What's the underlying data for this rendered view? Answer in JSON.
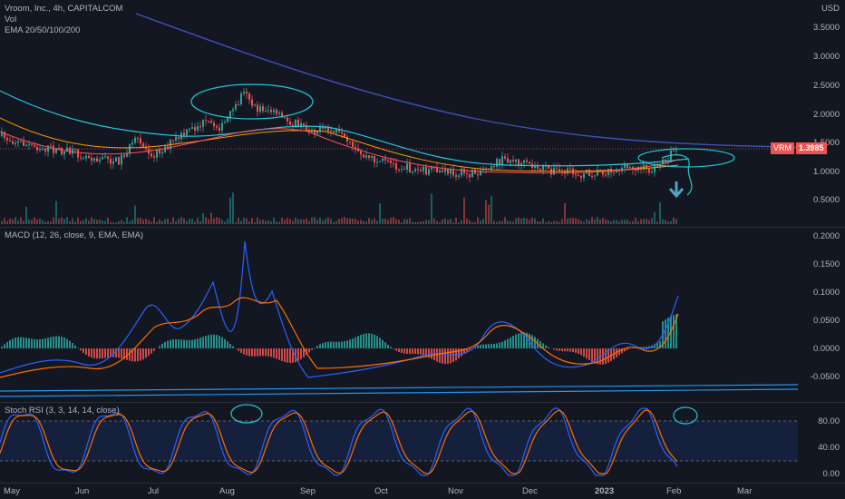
{
  "header": {
    "title": "Vroom, Inc., 4h, CAPITALCOM",
    "vol_label": "Vol",
    "ema_label": "EMA 20/50/100/200",
    "currency": "USD"
  },
  "price_axis": [
    "3.5000",
    "3.0000",
    "2.5000",
    "2.0000",
    "1.5000",
    "1.0000",
    "0.5000"
  ],
  "price_tag": {
    "symbol": "VRM",
    "value": "1.3985"
  },
  "macd": {
    "label": "MACD (12, 26, close, 9, EMA, EMA)",
    "axis": [
      "0.2000",
      "0.1500",
      "0.1000",
      "0.0500",
      "0.0000",
      "-0.0500"
    ]
  },
  "stoch": {
    "label": "Stoch RSI (3, 3, 14, 14, close)",
    "axis": [
      "80.00",
      "40.00",
      "0.00"
    ]
  },
  "time_axis": [
    "May",
    "Jun",
    "Jul",
    "Aug",
    "Sep",
    "Oct",
    "Nov",
    "Dec",
    "2023",
    "Feb",
    "Mar"
  ],
  "colors": {
    "bg": "#131722",
    "up": "#26a69a",
    "down": "#ef5350",
    "ema20": "#f7525f",
    "ema50": "#ff9800",
    "ema100": "#26c6da",
    "ema200": "#3f51b5",
    "macd_line": "#2962ff",
    "signal_line": "#ff6d00",
    "stoch_k": "#2962ff",
    "stoch_d": "#ff6d00",
    "annotation": "#21c7d3"
  }
}
